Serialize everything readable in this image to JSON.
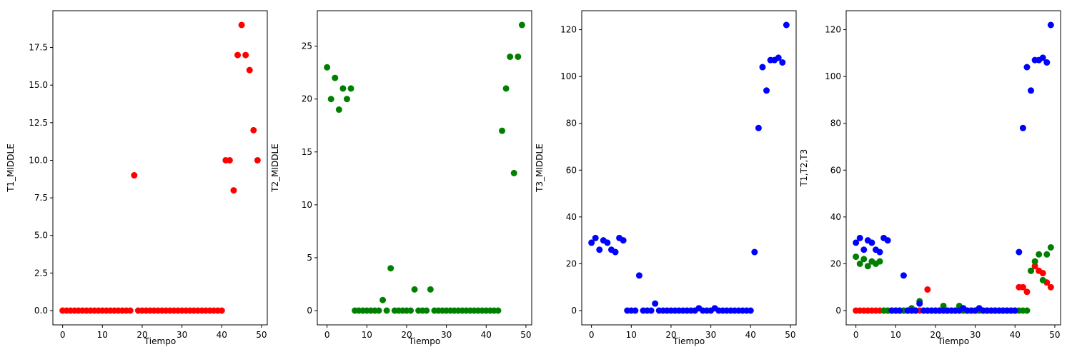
{
  "chart_data": [
    {
      "type": "scatter",
      "xlabel": "Tiempo",
      "ylabel": "T1_MIDDLE",
      "xlim": [
        -2.45,
        51.45
      ],
      "ylim": [
        -0.95,
        19.95
      ],
      "xticks": [
        0,
        10,
        20,
        30,
        40,
        50
      ],
      "yticks": [
        0.0,
        2.5,
        5.0,
        7.5,
        10.0,
        12.5,
        15.0,
        17.5
      ],
      "ytick_labels": [
        "0.0",
        "2.5",
        "5.0",
        "7.5",
        "10.0",
        "12.5",
        "15.0",
        "17.5"
      ],
      "grid": false,
      "series": [
        {
          "color": "#ff0000",
          "x": [
            0,
            1,
            2,
            3,
            4,
            5,
            6,
            7,
            8,
            9,
            10,
            11,
            12,
            13,
            14,
            15,
            16,
            17,
            18,
            19,
            20,
            21,
            22,
            23,
            24,
            25,
            26,
            27,
            28,
            29,
            30,
            31,
            32,
            33,
            34,
            35,
            36,
            37,
            38,
            39,
            40,
            41,
            42,
            43,
            44,
            45,
            46,
            47,
            48,
            49
          ],
          "y": [
            0,
            0,
            0,
            0,
            0,
            0,
            0,
            0,
            0,
            0,
            0,
            0,
            0,
            0,
            0,
            0,
            0,
            0,
            9,
            0,
            0,
            0,
            0,
            0,
            0,
            0,
            0,
            0,
            0,
            0,
            0,
            0,
            0,
            0,
            0,
            0,
            0,
            0,
            0,
            0,
            0,
            10,
            10,
            8,
            17,
            19,
            17,
            16,
            12,
            10
          ]
        }
      ]
    },
    {
      "type": "scatter",
      "xlabel": "Tiempo",
      "ylabel": "T2_MIDDLE",
      "xlim": [
        -2.45,
        51.45
      ],
      "ylim": [
        -1.35,
        28.35
      ],
      "xticks": [
        0,
        10,
        20,
        30,
        40,
        50
      ],
      "yticks": [
        0,
        5,
        10,
        15,
        20,
        25
      ],
      "ytick_labels": [
        "0",
        "5",
        "10",
        "15",
        "20",
        "25"
      ],
      "grid": false,
      "series": [
        {
          "color": "#008000",
          "x": [
            0,
            1,
            2,
            3,
            4,
            5,
            6,
            7,
            8,
            9,
            10,
            11,
            12,
            13,
            14,
            15,
            16,
            17,
            18,
            19,
            20,
            21,
            22,
            23,
            24,
            25,
            26,
            27,
            28,
            29,
            30,
            31,
            32,
            33,
            34,
            35,
            36,
            37,
            38,
            39,
            40,
            41,
            42,
            43,
            44,
            45,
            46,
            47,
            48,
            49
          ],
          "y": [
            23,
            20,
            22,
            19,
            21,
            20,
            21,
            0,
            0,
            0,
            0,
            0,
            0,
            0,
            1,
            0,
            4,
            0,
            0,
            0,
            0,
            0,
            2,
            0,
            0,
            0,
            2,
            0,
            0,
            0,
            0,
            0,
            0,
            0,
            0,
            0,
            0,
            0,
            0,
            0,
            0,
            0,
            0,
            0,
            17,
            21,
            24,
            13,
            24,
            27
          ]
        }
      ]
    },
    {
      "type": "scatter",
      "xlabel": "Tiempo",
      "ylabel": "T3_MIDDLE",
      "xlim": [
        -2.45,
        51.45
      ],
      "ylim": [
        -6.1,
        128.1
      ],
      "xticks": [
        0,
        10,
        20,
        30,
        40,
        50
      ],
      "yticks": [
        0,
        20,
        40,
        60,
        80,
        100,
        120
      ],
      "ytick_labels": [
        "0",
        "20",
        "40",
        "60",
        "80",
        "100",
        "120"
      ],
      "grid": false,
      "series": [
        {
          "color": "#0000ff",
          "x": [
            0,
            1,
            2,
            3,
            4,
            5,
            6,
            7,
            8,
            9,
            10,
            11,
            12,
            13,
            14,
            15,
            16,
            17,
            18,
            19,
            20,
            21,
            22,
            23,
            24,
            25,
            26,
            27,
            28,
            29,
            30,
            31,
            32,
            33,
            34,
            35,
            36,
            37,
            38,
            39,
            40,
            41,
            42,
            43,
            44,
            45,
            46,
            47,
            48,
            49
          ],
          "y": [
            29,
            31,
            26,
            30,
            29,
            26,
            25,
            31,
            30,
            0,
            0,
            0,
            15,
            0,
            0,
            0,
            3,
            0,
            0,
            0,
            0,
            0,
            0,
            0,
            0,
            0,
            0,
            1,
            0,
            0,
            0,
            1,
            0,
            0,
            0,
            0,
            0,
            0,
            0,
            0,
            0,
            25,
            78,
            104,
            94,
            107,
            107,
            108,
            106,
            122
          ]
        }
      ]
    },
    {
      "type": "scatter",
      "xlabel": "Tiempo",
      "ylabel": "T1,T2,T3",
      "xlim": [
        -2.45,
        51.45
      ],
      "ylim": [
        -6.1,
        128.1
      ],
      "xticks": [
        0,
        10,
        20,
        30,
        40,
        50
      ],
      "yticks": [
        0,
        20,
        40,
        60,
        80,
        100,
        120
      ],
      "ytick_labels": [
        "0",
        "20",
        "40",
        "60",
        "80",
        "100",
        "120"
      ],
      "grid": false,
      "series": [
        {
          "color": "#ff0000",
          "x": [
            0,
            1,
            2,
            3,
            4,
            5,
            6,
            7,
            8,
            9,
            10,
            11,
            12,
            13,
            14,
            15,
            16,
            17,
            18,
            19,
            20,
            21,
            22,
            23,
            24,
            25,
            26,
            27,
            28,
            29,
            30,
            31,
            32,
            33,
            34,
            35,
            36,
            37,
            38,
            39,
            40,
            41,
            42,
            43,
            44,
            45,
            46,
            47,
            48,
            49
          ],
          "y": [
            0,
            0,
            0,
            0,
            0,
            0,
            0,
            0,
            0,
            0,
            0,
            0,
            0,
            0,
            0,
            0,
            0,
            0,
            9,
            0,
            0,
            0,
            0,
            0,
            0,
            0,
            0,
            0,
            0,
            0,
            0,
            0,
            0,
            0,
            0,
            0,
            0,
            0,
            0,
            0,
            0,
            10,
            10,
            8,
            17,
            19,
            17,
            16,
            12,
            10
          ]
        },
        {
          "color": "#008000",
          "x": [
            0,
            1,
            2,
            3,
            4,
            5,
            6,
            7,
            8,
            9,
            10,
            11,
            12,
            13,
            14,
            15,
            16,
            17,
            18,
            19,
            20,
            21,
            22,
            23,
            24,
            25,
            26,
            27,
            28,
            29,
            30,
            31,
            32,
            33,
            34,
            35,
            36,
            37,
            38,
            39,
            40,
            41,
            42,
            43,
            44,
            45,
            46,
            47,
            48,
            49
          ],
          "y": [
            23,
            20,
            22,
            19,
            21,
            20,
            21,
            0,
            0,
            0,
            0,
            0,
            0,
            0,
            1,
            0,
            4,
            0,
            0,
            0,
            0,
            0,
            2,
            0,
            0,
            0,
            2,
            0,
            0,
            0,
            0,
            0,
            0,
            0,
            0,
            0,
            0,
            0,
            0,
            0,
            0,
            0,
            0,
            0,
            17,
            21,
            24,
            13,
            24,
            27
          ]
        },
        {
          "color": "#0000ff",
          "x": [
            0,
            1,
            2,
            3,
            4,
            5,
            6,
            7,
            8,
            9,
            10,
            11,
            12,
            13,
            14,
            15,
            16,
            17,
            18,
            19,
            20,
            21,
            22,
            23,
            24,
            25,
            26,
            27,
            28,
            29,
            30,
            31,
            32,
            33,
            34,
            35,
            36,
            37,
            38,
            39,
            40,
            41,
            42,
            43,
            44,
            45,
            46,
            47,
            48,
            49
          ],
          "y": [
            29,
            31,
            26,
            30,
            29,
            26,
            25,
            31,
            30,
            0,
            0,
            0,
            15,
            0,
            0,
            0,
            3,
            0,
            0,
            0,
            0,
            0,
            0,
            0,
            0,
            0,
            0,
            1,
            0,
            0,
            0,
            1,
            0,
            0,
            0,
            0,
            0,
            0,
            0,
            0,
            0,
            25,
            78,
            104,
            94,
            107,
            107,
            108,
            106,
            122
          ]
        }
      ]
    }
  ]
}
